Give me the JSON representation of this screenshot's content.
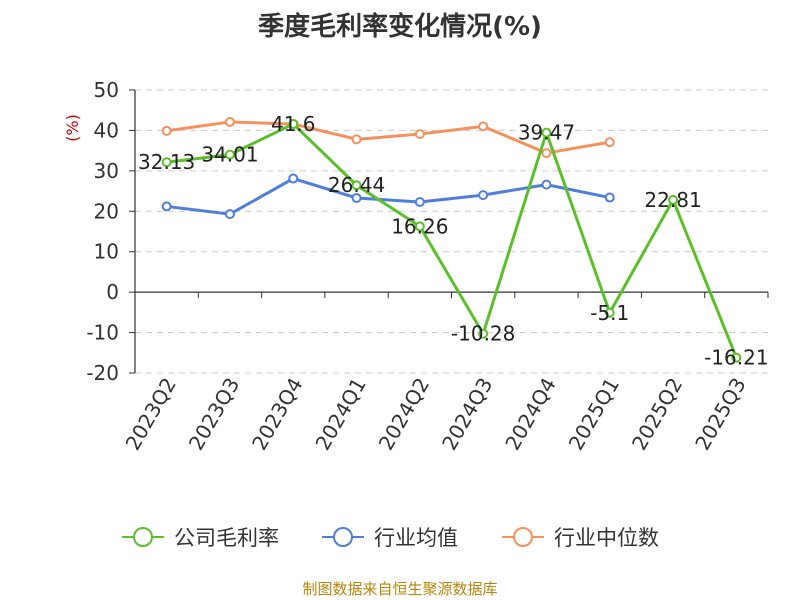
{
  "page": {
    "source_note": "制图数据来自恒生聚源数据库"
  },
  "chart_data": {
    "type": "line",
    "title": "季度毛利率变化情况(%)",
    "ylabel": "(%)",
    "xlabel": "",
    "ylim": [
      -20,
      50
    ],
    "yticks": [
      50,
      40,
      30,
      20,
      10,
      0,
      -10,
      -20
    ],
    "grid": true,
    "legend_position": "bottom-center",
    "categories": [
      "2023Q2",
      "2023Q3",
      "2023Q4",
      "2024Q1",
      "2024Q2",
      "2024Q3",
      "2024Q4",
      "2025Q1",
      "2025Q2",
      "2025Q3"
    ],
    "series": [
      {
        "name": "公司毛利率",
        "color": "#5cbf2a",
        "show_labels": true,
        "values": [
          32.13,
          34.01,
          41.6,
          26.44,
          16.26,
          -10.28,
          39.47,
          -5.1,
          22.81,
          -16.21
        ],
        "labels": [
          "32.13",
          "34.01",
          "41.6",
          "26.44",
          "16.26",
          "-10.28",
          "39.47",
          "-5.1",
          "22.81",
          "-16.21"
        ]
      },
      {
        "name": "行业均值",
        "color": "#4f7fdb",
        "show_labels": false,
        "values": [
          21.2,
          19.3,
          28.1,
          23.3,
          22.3,
          24.0,
          26.6,
          23.4,
          null,
          null
        ]
      },
      {
        "name": "行业中位数",
        "color": "#f5915c",
        "show_labels": false,
        "values": [
          39.9,
          42.1,
          41.6,
          37.8,
          39.1,
          41.0,
          34.4,
          37.1,
          null,
          null
        ]
      }
    ]
  }
}
